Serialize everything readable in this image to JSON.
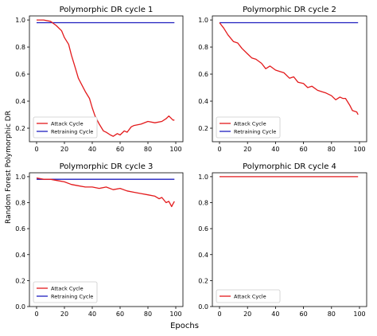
{
  "figure": {
    "ylabel": "Random Forest Polymorphic DR",
    "xlabel": "Epochs"
  },
  "colors": {
    "attack": "#e31a1c",
    "retraining": "#1f1fbf"
  },
  "chart_data": [
    {
      "type": "line",
      "title": "Polymorphic DR cycle 1",
      "xlim": [
        0,
        100
      ],
      "ylim": [
        0.1,
        1.03
      ],
      "xticks": [
        "0",
        "20",
        "40",
        "60",
        "80",
        "100"
      ],
      "yticks": [
        "0.2",
        "0.4",
        "0.6",
        "0.8",
        "1.0"
      ],
      "legend": "lower-left",
      "series": [
        {
          "name": "Attack Cycle",
          "color": "#e31a1c",
          "x": [
            0,
            5,
            10,
            14,
            18,
            20,
            23,
            25,
            28,
            30,
            32,
            35,
            38,
            40,
            42,
            45,
            48,
            50,
            53,
            55,
            58,
            60,
            63,
            65,
            68,
            70,
            75,
            80,
            85,
            90,
            93,
            95,
            98,
            99
          ],
          "y": [
            1.0,
            1.0,
            0.99,
            0.96,
            0.92,
            0.87,
            0.82,
            0.74,
            0.64,
            0.57,
            0.53,
            0.47,
            0.42,
            0.35,
            0.29,
            0.23,
            0.18,
            0.17,
            0.15,
            0.14,
            0.16,
            0.15,
            0.18,
            0.17,
            0.21,
            0.22,
            0.23,
            0.25,
            0.24,
            0.25,
            0.27,
            0.29,
            0.26,
            0.26
          ]
        },
        {
          "name": "Retraining Cycle",
          "color": "#1f1fbf",
          "x": [
            0,
            10,
            20,
            30,
            40,
            50,
            60,
            70,
            80,
            90,
            99
          ],
          "y": [
            0.98,
            0.98,
            0.98,
            0.98,
            0.98,
            0.98,
            0.98,
            0.98,
            0.98,
            0.98,
            0.98
          ]
        }
      ]
    },
    {
      "type": "line",
      "title": "Polymorphic DR cycle 2",
      "xlim": [
        0,
        100
      ],
      "ylim": [
        0.1,
        1.03
      ],
      "xticks": [
        "0",
        "20",
        "40",
        "60",
        "80",
        "100"
      ],
      "yticks": [
        "0.2",
        "0.4",
        "0.6",
        "0.8",
        "1.0"
      ],
      "legend": "lower-left",
      "series": [
        {
          "name": "Attack Cycle",
          "color": "#e31a1c",
          "x": [
            0,
            3,
            6,
            10,
            13,
            16,
            20,
            23,
            26,
            30,
            33,
            36,
            40,
            43,
            46,
            50,
            53,
            56,
            60,
            63,
            66,
            70,
            73,
            76,
            80,
            83,
            86,
            88,
            90,
            93,
            95,
            98,
            99
          ],
          "y": [
            0.98,
            0.94,
            0.89,
            0.84,
            0.83,
            0.79,
            0.75,
            0.72,
            0.71,
            0.68,
            0.64,
            0.66,
            0.63,
            0.62,
            0.61,
            0.57,
            0.58,
            0.54,
            0.53,
            0.5,
            0.51,
            0.48,
            0.47,
            0.46,
            0.44,
            0.41,
            0.43,
            0.42,
            0.42,
            0.37,
            0.33,
            0.32,
            0.3
          ]
        },
        {
          "name": "Retraining Cycle",
          "color": "#1f1fbf",
          "x": [
            0,
            10,
            20,
            30,
            40,
            50,
            60,
            70,
            80,
            90,
            99
          ],
          "y": [
            0.98,
            0.98,
            0.98,
            0.98,
            0.98,
            0.98,
            0.98,
            0.98,
            0.98,
            0.98,
            0.98
          ]
        }
      ]
    },
    {
      "type": "line",
      "title": "Polymorphic DR cycle 3",
      "xlim": [
        0,
        100
      ],
      "ylim": [
        0.0,
        1.03
      ],
      "xticks": [
        "0",
        "20",
        "40",
        "60",
        "80",
        "100"
      ],
      "yticks": [
        "0.0",
        "0.2",
        "0.4",
        "0.6",
        "0.8",
        "1.0"
      ],
      "legend": "lower-left",
      "series": [
        {
          "name": "Attack Cycle",
          "color": "#e31a1c",
          "x": [
            0,
            5,
            10,
            15,
            20,
            25,
            30,
            35,
            40,
            45,
            50,
            55,
            60,
            65,
            70,
            75,
            80,
            85,
            88,
            90,
            93,
            95,
            97,
            98,
            99
          ],
          "y": [
            0.99,
            0.98,
            0.98,
            0.97,
            0.96,
            0.94,
            0.93,
            0.92,
            0.92,
            0.91,
            0.92,
            0.9,
            0.91,
            0.89,
            0.88,
            0.87,
            0.86,
            0.85,
            0.83,
            0.84,
            0.8,
            0.81,
            0.77,
            0.79,
            0.81
          ]
        },
        {
          "name": "Retraining Cycle",
          "color": "#1f1fbf",
          "x": [
            0,
            10,
            20,
            30,
            40,
            50,
            60,
            70,
            80,
            90,
            99
          ],
          "y": [
            0.98,
            0.98,
            0.98,
            0.98,
            0.98,
            0.98,
            0.98,
            0.98,
            0.98,
            0.98,
            0.98
          ]
        }
      ]
    },
    {
      "type": "line",
      "title": "Polymorphic DR cycle 4",
      "xlim": [
        0,
        100
      ],
      "ylim": [
        0.0,
        1.03
      ],
      "xticks": [
        "0",
        "20",
        "40",
        "60",
        "80",
        "100"
      ],
      "yticks": [
        "0.0",
        "0.2",
        "0.4",
        "0.6",
        "0.8",
        "1.0"
      ],
      "legend": "lower-left",
      "series": [
        {
          "name": "Attack Cycle",
          "color": "#e31a1c",
          "x": [
            0,
            99
          ],
          "y": [
            1.0,
            1.0
          ]
        }
      ]
    }
  ]
}
